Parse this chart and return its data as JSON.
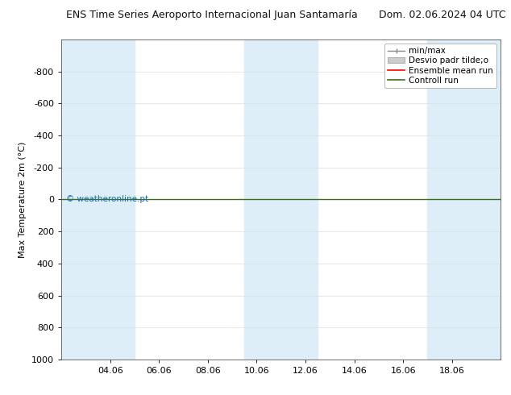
{
  "title_left": "ENS Time Series Aeroporto Internacional Juan Santamaría",
  "title_right": "Dom. 02.06.2024 04 UTC",
  "ylabel": "Max Temperature 2m (°C)",
  "ylim_bottom": 1000,
  "ylim_top": -1000,
  "x_ticks_labels": [
    "04.06",
    "06.06",
    "08.06",
    "10.06",
    "12.06",
    "14.06",
    "16.06",
    "18.06"
  ],
  "x_ticks_positions": [
    2,
    4,
    6,
    8,
    10,
    12,
    14,
    16
  ],
  "xlim": [
    0,
    18
  ],
  "blue_band_xranges": [
    [
      0,
      3
    ],
    [
      7.5,
      10.5
    ],
    [
      15,
      18
    ]
  ],
  "blue_band_color": "#ddeef8",
  "control_run_y": 0,
  "control_run_color": "#3a6e1a",
  "ensemble_mean_color": "#ff0000",
  "watermark": "© weatheronline.pt",
  "watermark_color": "#1a6fa8",
  "background_color": "#ffffff",
  "y_ticks": [
    -800,
    -600,
    -400,
    -200,
    0,
    200,
    400,
    600,
    800,
    1000
  ],
  "legend_labels": [
    "min/max",
    "Desvio padr tilde;o",
    "Ensemble mean run",
    "Controll run"
  ],
  "legend_colors_line": [
    "#888888",
    "#cccccc",
    "#ff0000",
    "#3a6e1a"
  ],
  "title_fontsize": 9,
  "axis_label_fontsize": 8,
  "tick_fontsize": 8,
  "legend_fontsize": 7.5
}
